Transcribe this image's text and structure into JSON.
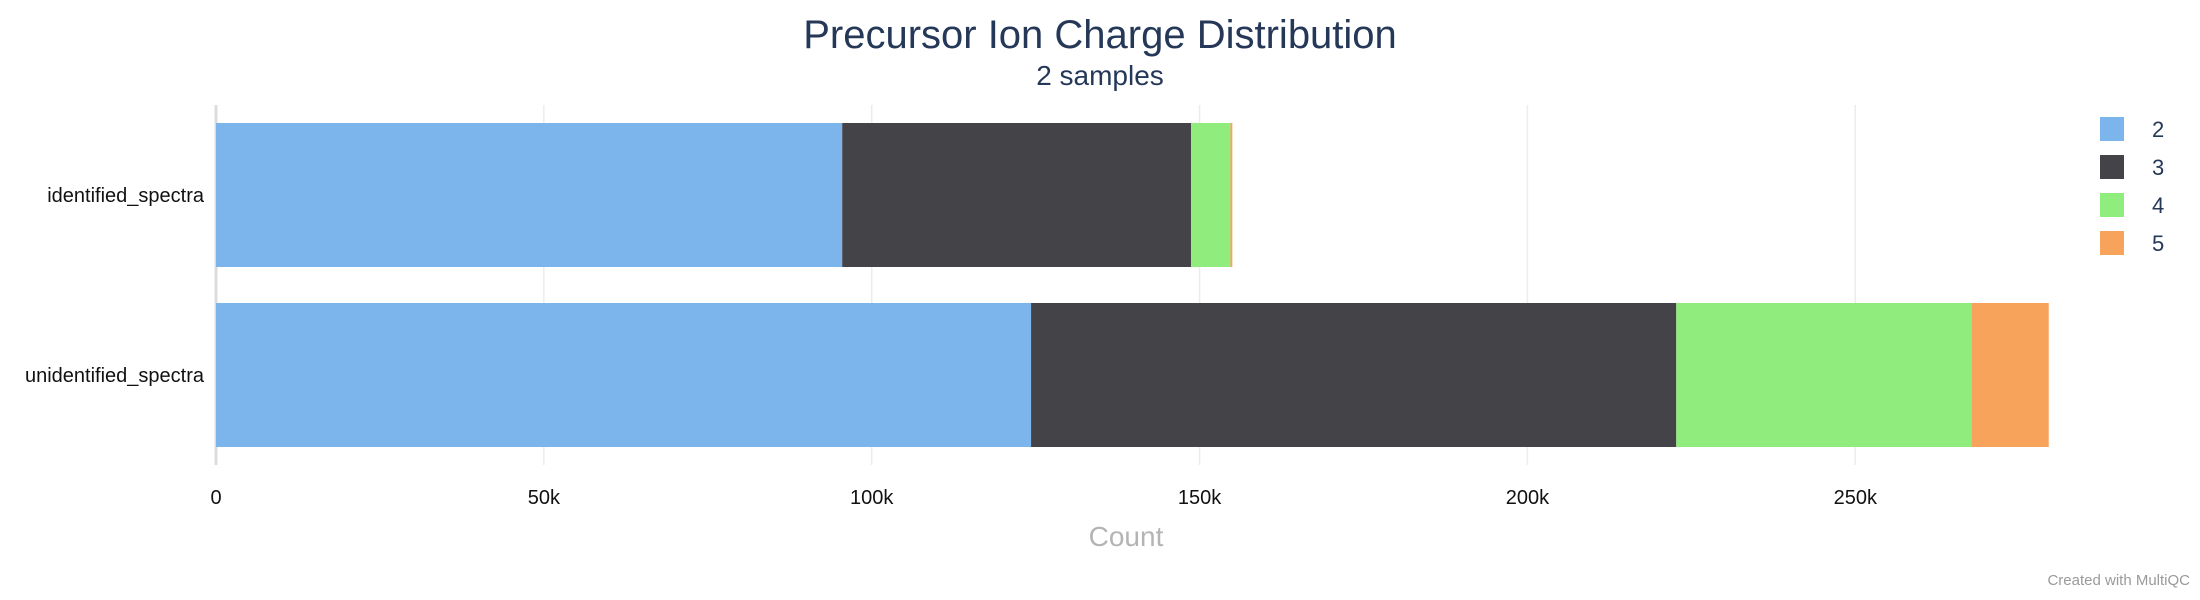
{
  "chart_data": {
    "type": "bar",
    "orientation": "horizontal",
    "stacked": true,
    "title": "Precursor Ion Charge Distribution",
    "subtitle": "2 samples",
    "xlabel": "Count",
    "ylabel": "",
    "xlim": [
      0,
      280000
    ],
    "x_ticks": [
      0,
      50000,
      100000,
      150000,
      200000,
      250000
    ],
    "x_tick_labels": [
      "0",
      "50k",
      "100k",
      "150k",
      "200k",
      "250k"
    ],
    "grid": true,
    "legend_position": "top-right",
    "categories": [
      "identified_spectra",
      "unidentified_spectra"
    ],
    "series": [
      {
        "name": "2",
        "color": "#7cb5ec",
        "values": [
          95500,
          124300
        ]
      },
      {
        "name": "3",
        "color": "#434348",
        "values": [
          53200,
          98400
        ]
      },
      {
        "name": "4",
        "color": "#90ed7d",
        "values": [
          6000,
          45000
        ]
      },
      {
        "name": "5",
        "color": "#f7a35c",
        "values": [
          300,
          11800
        ]
      }
    ]
  },
  "credit": "Created with MultiQC"
}
